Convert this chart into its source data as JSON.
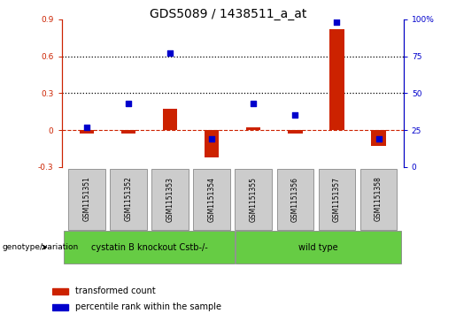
{
  "title": "GDS5089 / 1438511_a_at",
  "samples": [
    "GSM1151351",
    "GSM1151352",
    "GSM1151353",
    "GSM1151354",
    "GSM1151355",
    "GSM1151356",
    "GSM1151357",
    "GSM1151358"
  ],
  "red_values": [
    -0.03,
    -0.03,
    0.17,
    -0.22,
    0.02,
    -0.03,
    0.82,
    -0.13
  ],
  "blue_pct": [
    27,
    43,
    77,
    19,
    43,
    35,
    98,
    19
  ],
  "left_ylim": [
    -0.3,
    0.9
  ],
  "right_ylim": [
    0,
    100
  ],
  "left_yticks": [
    -0.3,
    0.0,
    0.3,
    0.6,
    0.9
  ],
  "right_yticks": [
    0,
    25,
    50,
    75,
    100
  ],
  "left_yticklabels": [
    "-0.3",
    "0",
    "0.3",
    "0.6",
    "0.9"
  ],
  "right_yticklabels": [
    "0",
    "25",
    "50",
    "75",
    "100%"
  ],
  "hlines": [
    0.3,
    0.6
  ],
  "group1_label": "cystatin B knockout Cstb-/-",
  "group2_label": "wild type",
  "genotype_label": "genotype/variation",
  "legend1": "transformed count",
  "legend2": "percentile rank within the sample",
  "red_color": "#cc2200",
  "blue_color": "#0000cc",
  "green_color": "#66cc44",
  "bar_bg_color": "#cccccc",
  "title_fontsize": 10,
  "tick_fontsize": 6.5,
  "sample_fontsize": 5.5
}
